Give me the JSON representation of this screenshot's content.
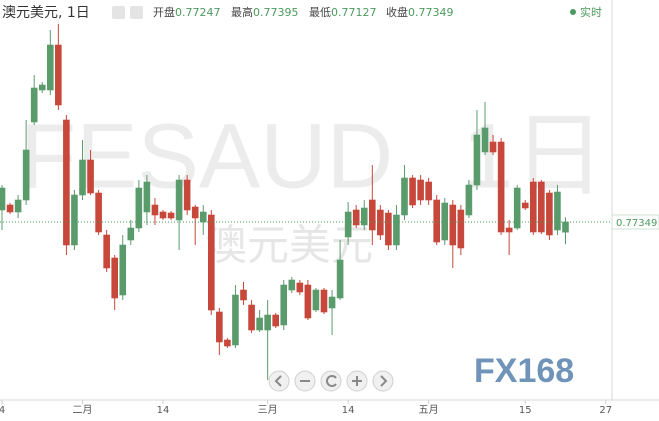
{
  "chart_data": {
    "type": "candlestick",
    "title": "澳元美元, 1日",
    "ohlc_labels": [
      "开盘",
      "最高",
      "最低",
      "收盘"
    ],
    "ohlc_values": [
      0.77247,
      0.77395,
      0.77127,
      0.77349
    ],
    "live_label": "实时",
    "last_price": 0.77349,
    "watermark_symbol": "FESAUD",
    "watermark_interval": "1日",
    "watermark_name": "澳元美元",
    "logo": "FX168",
    "up_color": "#5a9b6c",
    "down_color": "#c7473b",
    "ylim": [
      0.75569,
      0.79569
    ],
    "categories": [
      "4",
      null,
      null,
      null,
      null,
      null,
      null,
      null,
      null,
      null,
      "二月",
      null,
      null,
      null,
      null,
      null,
      null,
      null,
      null,
      null,
      "14",
      null,
      null,
      null,
      null,
      null,
      null,
      null,
      null,
      null,
      null,
      null,
      null,
      "三月",
      null,
      null,
      null,
      null,
      null,
      null,
      null,
      null,
      null,
      "14",
      null,
      null,
      null,
      null,
      null,
      null,
      null,
      null,
      null,
      "五月",
      null,
      null,
      null,
      null,
      null,
      null,
      null,
      null,
      null,
      null,
      null,
      "15",
      null,
      null,
      null,
      null,
      null,
      null,
      null,
      null,
      null,
      "27"
    ],
    "open": [
      0.77469,
      0.77519,
      0.77449,
      0.77569,
      0.78349,
      0.78669,
      0.78669,
      0.79119,
      0.78369,
      0.77119,
      0.77619,
      0.77969,
      0.77639,
      0.77219,
      0.76989,
      0.76619,
      0.77169,
      0.77289,
      0.77449,
      0.77519,
      0.77449,
      0.77439,
      0.77369,
      0.77769,
      0.77499,
      0.77349,
      0.77419,
      0.76449,
      0.76169,
      0.76119,
      0.76669,
      0.76519,
      0.76269,
      0.76269,
      0.76419,
      0.76319,
      0.76669,
      0.76739,
      0.76719,
      0.76469,
      0.76669,
      0.76489,
      0.76589,
      0.77199,
      0.77469,
      0.77319,
      0.77569,
      0.77469,
      0.77439,
      0.77119,
      0.77419,
      0.77789,
      0.77769,
      0.77749,
      0.77569,
      0.77169,
      0.77519,
      0.77469,
      0.77419,
      0.77719,
      0.78049,
      0.78149,
      0.78149,
      0.77289,
      0.77289,
      0.77539,
      0.77749,
      0.77749,
      0.77639,
      0.77269,
      0.77247,
      null,
      null,
      null,
      null,
      null
    ],
    "high": [
      0.77719,
      0.77539,
      0.77619,
      0.78369,
      0.78819,
      0.78749,
      0.79269,
      0.79369,
      0.78419,
      0.77669,
      0.78169,
      0.78069,
      0.77669,
      0.77269,
      0.77019,
      0.77219,
      0.77369,
      0.77769,
      0.77819,
      0.77589,
      0.77469,
      0.77459,
      0.77819,
      0.77819,
      0.77519,
      0.77519,
      0.77469,
      0.76489,
      0.76189,
      0.76719,
      0.76749,
      0.76569,
      0.76469,
      0.76569,
      0.76439,
      0.76769,
      0.76799,
      0.76769,
      0.76769,
      0.76689,
      0.76689,
      0.76669,
      0.77169,
      0.77549,
      0.77519,
      0.77569,
      0.77919,
      0.77519,
      0.77469,
      0.77519,
      0.77919,
      0.77819,
      0.77819,
      0.77789,
      0.77619,
      0.77589,
      0.77569,
      0.77519,
      0.77769,
      0.78469,
      0.78549,
      0.78219,
      0.78189,
      0.77369,
      0.77719,
      0.77569,
      0.77789,
      0.77769,
      0.77669,
      0.77719,
      0.77395,
      null,
      null,
      null,
      null,
      null
    ],
    "low": [
      0.77269,
      0.77429,
      0.77389,
      0.77519,
      0.78319,
      0.78639,
      0.78619,
      0.78469,
      0.77019,
      0.77069,
      0.77569,
      0.77619,
      0.77219,
      0.76849,
      0.76469,
      0.76569,
      0.77119,
      0.77249,
      0.77319,
      0.77319,
      0.77369,
      0.77369,
      0.77069,
      0.77419,
      0.77119,
      0.77219,
      0.76419,
      0.76019,
      0.76089,
      0.76089,
      0.76519,
      0.76239,
      0.76249,
      0.75769,
      0.76289,
      0.76269,
      0.76639,
      0.76619,
      0.76369,
      0.76449,
      0.76429,
      0.76219,
      0.76569,
      0.77119,
      0.77289,
      0.77269,
      0.77119,
      0.77169,
      0.77069,
      0.77069,
      0.77369,
      0.77489,
      0.77519,
      0.77519,
      0.77119,
      0.77119,
      0.76889,
      0.77019,
      0.77389,
      0.77669,
      0.78019,
      0.78019,
      0.77219,
      0.77019,
      0.77269,
      0.77469,
      0.77219,
      0.77229,
      0.77169,
      0.77219,
      0.77127,
      null,
      null,
      null,
      null,
      null
    ],
    "close": [
      0.77689,
      0.77449,
      0.77569,
      0.78069,
      0.78689,
      0.78719,
      0.79119,
      0.78519,
      0.77119,
      0.77619,
      0.77969,
      0.77639,
      0.77249,
      0.76889,
      0.76589,
      0.77119,
      0.77289,
      0.77689,
      0.77749,
      0.77419,
      0.77389,
      0.77389,
      0.77769,
      0.77469,
      0.77389,
      0.77449,
      0.76469,
      0.76149,
      0.76109,
      0.76619,
      0.76569,
      0.76269,
      0.76389,
      0.76419,
      0.76309,
      0.76719,
      0.76769,
      0.76649,
      0.76389,
      0.76669,
      0.76449,
      0.76599,
      0.76969,
      0.77449,
      0.77319,
      0.77489,
      0.77269,
      0.77219,
      0.77119,
      0.77419,
      0.77789,
      0.77519,
      0.77569,
      0.77569,
      0.77149,
      0.77539,
      0.77119,
      0.77089,
      0.77719,
      0.78219,
      0.78289,
      0.78049,
      0.77249,
      0.77249,
      0.77689,
      0.77489,
      0.77249,
      0.77249,
      0.77219,
      0.77649,
      0.77349,
      null,
      null,
      null,
      null,
      null
    ]
  }
}
